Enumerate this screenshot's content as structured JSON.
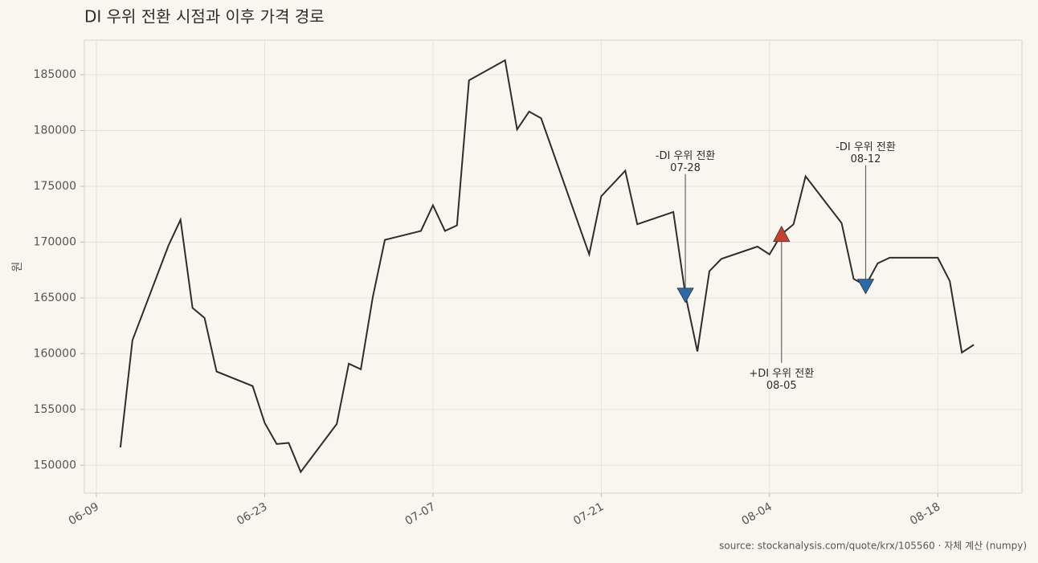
{
  "chart_data": {
    "type": "line",
    "title": "DI 우위 전환 시점과 이후 가격 경로",
    "y_label": "원",
    "source": "source: stockanalysis.com/quote/krx/105560  ·  자체 계산 (numpy)",
    "x": [
      "06-11",
      "06-12",
      "06-15",
      "06-16",
      "06-17",
      "06-18",
      "06-19",
      "06-22",
      "06-23",
      "06-24",
      "06-25",
      "06-26",
      "06-29",
      "06-30",
      "07-01",
      "07-02",
      "07-03",
      "07-06",
      "07-07",
      "07-08",
      "07-09",
      "07-10",
      "07-13",
      "07-14",
      "07-15",
      "07-16",
      "07-20",
      "07-21",
      "07-23",
      "07-24",
      "07-27",
      "07-28",
      "07-29",
      "07-30",
      "07-31",
      "08-03",
      "08-04",
      "08-05",
      "08-06",
      "08-07",
      "08-10",
      "08-11",
      "08-12",
      "08-13",
      "08-14",
      "08-18",
      "08-19",
      "08-20",
      "08-21"
    ],
    "series": [
      {
        "color": "#2d2d2d",
        "values": [
          151600,
          161200,
          169700,
          172000,
          164100,
          163200,
          158400,
          157100,
          153800,
          151900,
          152000,
          149400,
          153700,
          159100,
          158600,
          165100,
          170200,
          171000,
          173300,
          171000,
          171500,
          184500,
          186300,
          180100,
          181700,
          181100,
          168900,
          174100,
          176400,
          171600,
          172700,
          165300,
          160200,
          167400,
          168500,
          169600,
          168900,
          170700,
          171600,
          175900,
          171700,
          166700,
          166100,
          168100,
          168600,
          168600,
          166500,
          160100,
          160800
        ]
      }
    ],
    "annotations": [
      {
        "text": "-DI 우위 전환",
        "date": "07-28",
        "value": 165300,
        "marker": "down",
        "color": "#2a6aa8"
      },
      {
        "text": "+DI 우위 전환",
        "date": "08-05",
        "value": 170700,
        "marker": "up",
        "color": "#c8412f"
      },
      {
        "text": "-DI 우위 전환",
        "date": "08-12",
        "value": 166100,
        "marker": "down",
        "color": "#2a6aa8"
      }
    ],
    "xlim": [
      "06-08",
      "08-25"
    ],
    "xticks": [
      "06-09",
      "06-23",
      "07-07",
      "07-21",
      "08-04",
      "08-18"
    ],
    "ylim": [
      147500,
      188100
    ],
    "yticks": [
      150000,
      155000,
      160000,
      165000,
      170000,
      175000,
      180000,
      185000
    ],
    "grid": true
  }
}
